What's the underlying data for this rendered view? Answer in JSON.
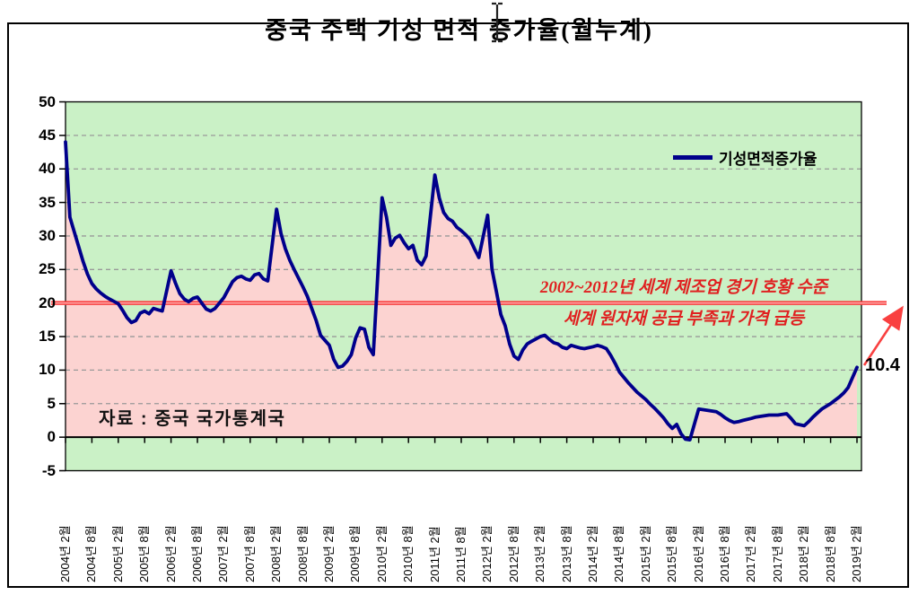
{
  "ui": {
    "cursor": "i-beam-text-cursor"
  },
  "chart": {
    "title": "중국 주택 기성 면적 증가율(월누계)",
    "legend": {
      "label": "기성면적증가율"
    },
    "source_note": "자료 : 중국 국가통계국",
    "end_label": "10.4",
    "annotations": {
      "line1": "2002~2012년 세계 제조업 경기 호황 수준",
      "line2": "세계 원자재 공급 부족과 가격 급등"
    },
    "colors": {
      "plot_bg": "#caf1c6",
      "area_fill": "#fcd3d1",
      "line": "#00008b",
      "reference_line": "#f94040",
      "reference_line_core": "#fdb0b0",
      "annotation_text": "#e02020",
      "gridline": "#999999"
    }
  },
  "chart_data": {
    "type": "line",
    "title": "중국 주택 기성 면적 증가율(월누계)",
    "xlabel": "",
    "ylabel": "",
    "ylim": [
      -5,
      50
    ],
    "ytick_interval": 5,
    "grid": "horizontal-dashed",
    "legend_position": "top-right-inside",
    "x_tick_labels": [
      "2004년 2월",
      "2004년 8월",
      "2005년 2월",
      "2005년 8월",
      "2006년 2월",
      "2006년 8월",
      "2007년 2월",
      "2007년 8월",
      "2008년 2월",
      "2008년 8월",
      "2009년 2월",
      "2009년 8월",
      "2010년 2월",
      "2010년 8월",
      "2011년 2월",
      "2011년 8월",
      "2012년 2월",
      "2012년 8월",
      "2013년 2월",
      "2013년 8월",
      "2014년 2월",
      "2014년 8월",
      "2015년 2월",
      "2015년 8월",
      "2016년 2월",
      "2016년 8월",
      "2017년 2월",
      "2017년 8월",
      "2018년 2월",
      "2018년 8월",
      "2019년 2월"
    ],
    "y_tick_labels": [
      "50",
      "45",
      "40",
      "35",
      "30",
      "25",
      "20",
      "15",
      "10",
      "5",
      "0",
      "-5"
    ],
    "reference_line": {
      "value": 20,
      "color": "red",
      "label_above": "2002~2012년 세계 제조업 경기 호황 수준",
      "label_below": "세계 원자재 공급 부족과 가격 급등"
    },
    "end_annotation": {
      "text": "10.4",
      "date": "2019-02",
      "value": 10.4,
      "arrow": "red-up-right"
    },
    "series": [
      {
        "name": "기성면적증가율",
        "months_note": "values are Feb..Dec of each year (Jan skipped); 2019 has Feb only",
        "data_by_year": {
          "2004": [
            44.0,
            32.8,
            30.6,
            28.4,
            26.2,
            24.3,
            22.9,
            22.1,
            21.5,
            21.0,
            20.6
          ],
          "2005": [
            19.9,
            18.9,
            17.8,
            17.1,
            17.4,
            18.5,
            18.8,
            18.4,
            19.2,
            19.0,
            18.8
          ],
          "2006": [
            24.8,
            23.0,
            21.4,
            20.6,
            20.2,
            20.7,
            20.9,
            20.0,
            19.1,
            18.8,
            19.2
          ],
          "2007": [
            20.8,
            22.0,
            23.2,
            23.8,
            24.0,
            23.6,
            23.4,
            24.2,
            24.4,
            23.6,
            23.3
          ],
          "2008": [
            34.0,
            30.4,
            28.1,
            26.4,
            25.0,
            23.7,
            22.4,
            21.0,
            19.2,
            17.4,
            15.2
          ],
          "2009": [
            13.7,
            11.6,
            10.4,
            10.6,
            11.3,
            12.3,
            14.8,
            16.3,
            16.1,
            13.4,
            12.3
          ],
          "2010": [
            35.7,
            32.8,
            28.6,
            29.7,
            30.1,
            29.0,
            28.1,
            28.6,
            26.4,
            25.7,
            27.0
          ],
          "2011": [
            39.1,
            35.7,
            33.5,
            32.6,
            32.2,
            31.3,
            30.8,
            30.2,
            29.5,
            28.1,
            26.8
          ],
          "2012": [
            33.1,
            25.0,
            21.7,
            18.3,
            16.6,
            13.9,
            12.1,
            11.6,
            13.0,
            13.9,
            14.3
          ],
          "2013": [
            15.0,
            15.2,
            14.6,
            14.1,
            13.9,
            13.4,
            13.2,
            13.7,
            13.5,
            13.3,
            13.2
          ],
          "2014": [
            13.5,
            13.7,
            13.5,
            13.2,
            12.2,
            11.0,
            9.7,
            8.9,
            8.1,
            7.4,
            6.7
          ],
          "2015": [
            5.6,
            4.9,
            4.3,
            3.6,
            2.9,
            2.0,
            1.3,
            1.9,
            0.5,
            -0.3,
            -0.4
          ],
          "2016": [
            4.2,
            4.1,
            4.0,
            3.9,
            3.8,
            3.4,
            2.9,
            2.5,
            2.2,
            2.3,
            2.5
          ],
          "2017": [
            2.8,
            3.0,
            3.1,
            3.2,
            3.3,
            3.3,
            3.3,
            3.4,
            3.5,
            2.8,
            2.0
          ],
          "2018": [
            1.7,
            2.3,
            3.0,
            3.6,
            4.2,
            4.6,
            5.0,
            5.5,
            6.0,
            6.6,
            7.4
          ],
          "2019": [
            10.4
          ]
        }
      }
    ]
  }
}
